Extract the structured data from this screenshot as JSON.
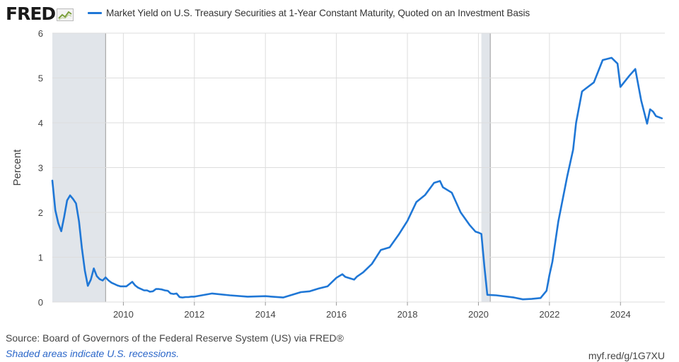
{
  "header": {
    "logo_text": "FRED",
    "logo_icon": "line-chart-icon"
  },
  "colors": {
    "series": "#1f77d6",
    "recession": "#e1e5ea",
    "grid": "#dddddd",
    "text": "#444444",
    "note": "#2a66c9"
  },
  "chart_data": {
    "type": "line",
    "title": "",
    "xlabel": "",
    "ylabel": "Percent",
    "x_range": [
      2008.0,
      2025.25
    ],
    "ylim": [
      0,
      6
    ],
    "y_ticks": [
      0,
      1,
      2,
      3,
      4,
      5,
      6
    ],
    "x_ticks": [
      2010,
      2012,
      2014,
      2016,
      2018,
      2020,
      2022,
      2024
    ],
    "grid": true,
    "legend_position": "top",
    "recessions": [
      [
        2008.0,
        2009.5
      ],
      [
        2020.083,
        2020.333
      ]
    ],
    "series": [
      {
        "name": "Market Yield on U.S. Treasury Securities at 1-Year Constant Maturity, Quoted on an Investment Basis",
        "x": [
          2008.0,
          2008.083,
          2008.167,
          2008.25,
          2008.333,
          2008.417,
          2008.5,
          2008.583,
          2008.667,
          2008.75,
          2008.833,
          2008.917,
          2009.0,
          2009.083,
          2009.167,
          2009.25,
          2009.333,
          2009.417,
          2009.5,
          2009.583,
          2009.667,
          2009.75,
          2009.833,
          2009.917,
          2010.0,
          2010.083,
          2010.167,
          2010.25,
          2010.333,
          2010.417,
          2010.5,
          2010.583,
          2010.667,
          2010.75,
          2010.833,
          2010.917,
          2011.0,
          2011.083,
          2011.167,
          2011.25,
          2011.333,
          2011.417,
          2011.5,
          2011.583,
          2011.667,
          2011.75,
          2011.833,
          2011.917,
          2012.0,
          2012.5,
          2013.0,
          2013.5,
          2014.0,
          2014.5,
          2015.0,
          2015.25,
          2015.5,
          2015.75,
          2016.0,
          2016.167,
          2016.25,
          2016.5,
          2016.583,
          2016.75,
          2017.0,
          2017.25,
          2017.5,
          2017.75,
          2018.0,
          2018.25,
          2018.5,
          2018.75,
          2018.917,
          2019.0,
          2019.25,
          2019.5,
          2019.75,
          2019.917,
          2020.0,
          2020.083,
          2020.167,
          2020.25,
          2020.5,
          2021.0,
          2021.25,
          2021.5,
          2021.75,
          2021.917,
          2022.0,
          2022.083,
          2022.25,
          2022.5,
          2022.667,
          2022.75,
          2022.917,
          2023.0,
          2023.25,
          2023.5,
          2023.75,
          2023.917,
          2024.0,
          2024.25,
          2024.417,
          2024.583,
          2024.75,
          2024.833,
          2024.917,
          2025.0,
          2025.167
        ],
        "values": [
          2.71,
          2.05,
          1.76,
          1.58,
          1.9,
          2.27,
          2.38,
          2.3,
          2.2,
          1.8,
          1.2,
          0.7,
          0.36,
          0.5,
          0.75,
          0.58,
          0.51,
          0.48,
          0.55,
          0.48,
          0.43,
          0.4,
          0.37,
          0.35,
          0.35,
          0.35,
          0.4,
          0.45,
          0.37,
          0.32,
          0.29,
          0.26,
          0.26,
          0.23,
          0.24,
          0.29,
          0.29,
          0.28,
          0.26,
          0.25,
          0.19,
          0.18,
          0.19,
          0.11,
          0.1,
          0.11,
          0.11,
          0.12,
          0.12,
          0.19,
          0.15,
          0.12,
          0.13,
          0.1,
          0.22,
          0.24,
          0.3,
          0.35,
          0.54,
          0.62,
          0.56,
          0.5,
          0.57,
          0.66,
          0.85,
          1.16,
          1.22,
          1.5,
          1.81,
          2.23,
          2.39,
          2.66,
          2.7,
          2.56,
          2.44,
          2.0,
          1.72,
          1.57,
          1.55,
          1.52,
          0.8,
          0.16,
          0.15,
          0.1,
          0.06,
          0.07,
          0.09,
          0.25,
          0.6,
          0.9,
          1.8,
          2.8,
          3.4,
          4.0,
          4.7,
          4.75,
          4.9,
          5.4,
          5.45,
          5.32,
          4.8,
          5.05,
          5.2,
          4.5,
          3.98,
          4.3,
          4.25,
          4.15,
          4.1
        ]
      }
    ]
  },
  "legend": {
    "label": "Market Yield on U.S. Treasury Securities at 1-Year Constant Maturity, Quoted on an Investment Basis"
  },
  "footer": {
    "source": "Source: Board of Governors of the Federal Reserve System (US) via FRED®",
    "note": "Shaded areas indicate U.S. recessions.",
    "link": "myf.red/g/1G7XU"
  }
}
